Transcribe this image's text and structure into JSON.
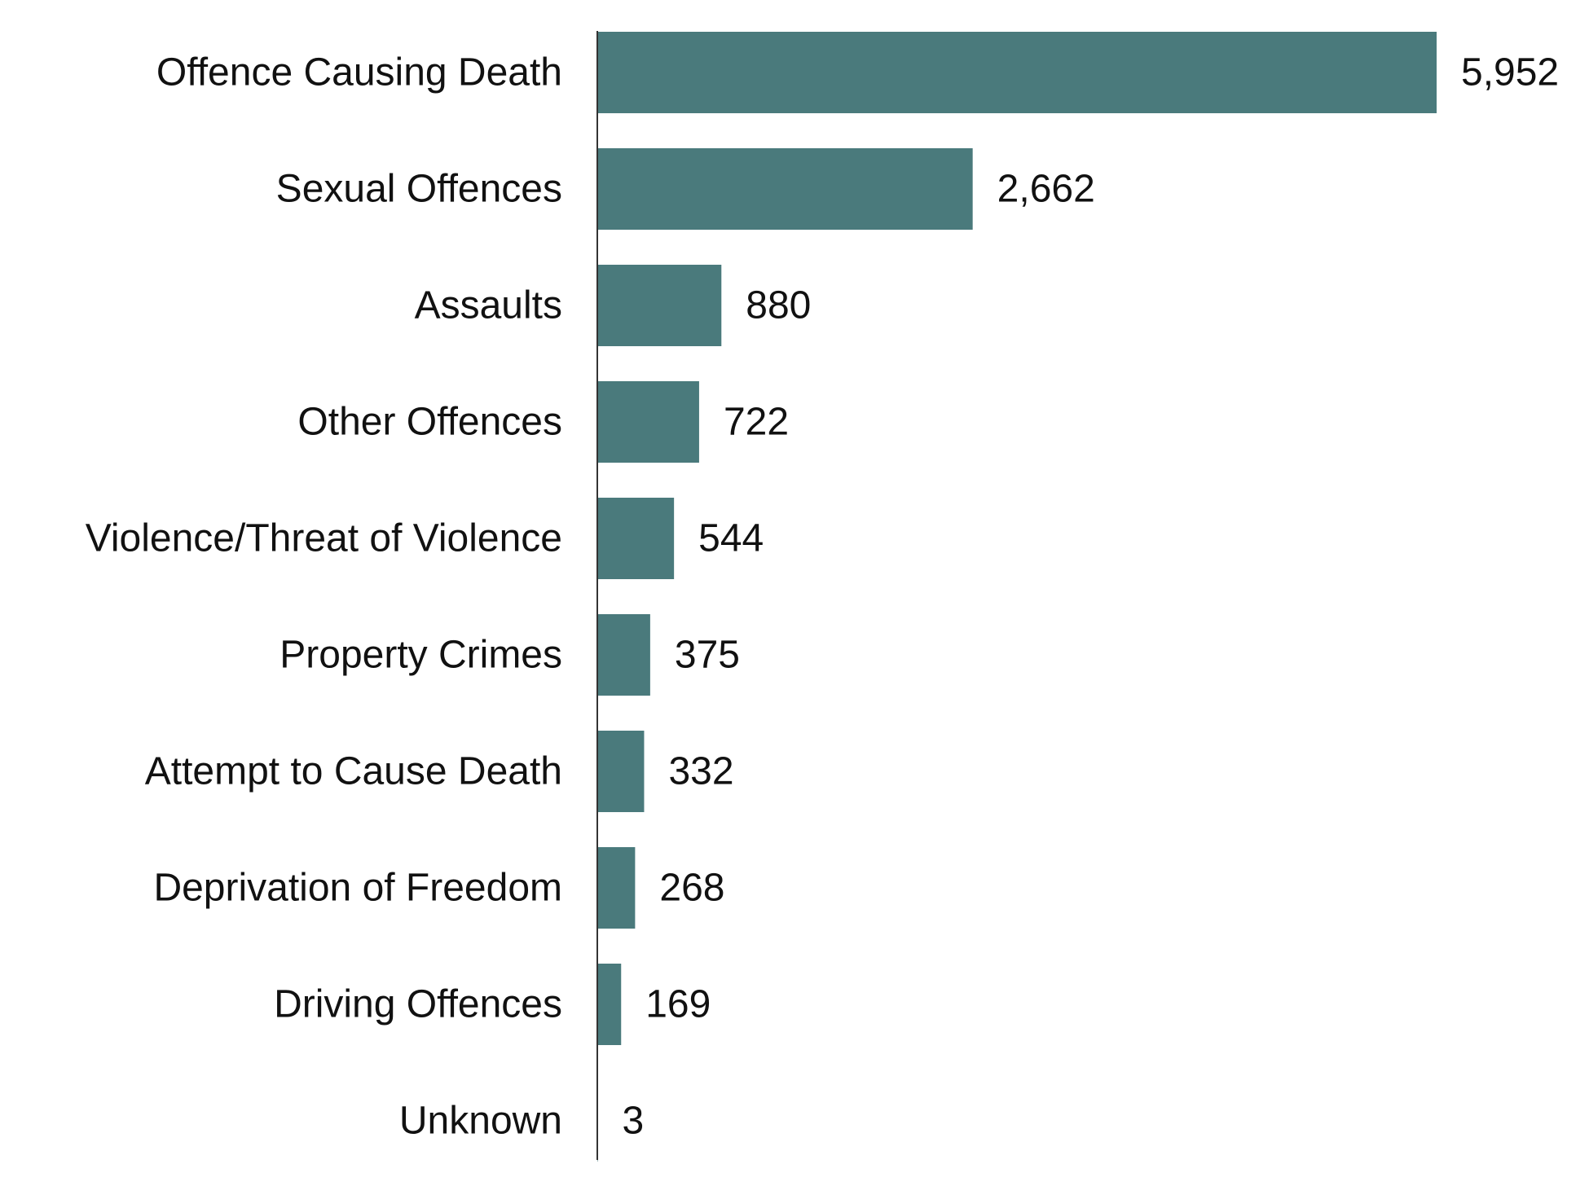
{
  "chart_data": {
    "type": "bar",
    "orientation": "horizontal",
    "title": "",
    "xlabel": "",
    "ylabel": "",
    "categories": [
      "Offence Causing Death",
      "Sexual Offences",
      "Assaults",
      "Other Offences",
      "Violence/Threat of Violence",
      "Property Crimes",
      "Attempt to Cause Death",
      "Deprivation of Freedom",
      "Driving Offences",
      "Unknown"
    ],
    "values": [
      5952,
      2662,
      880,
      722,
      544,
      375,
      332,
      268,
      169,
      3
    ],
    "value_labels": [
      "5,952",
      "2,662",
      "880",
      "722",
      "544",
      "375",
      "332",
      "268",
      "169",
      "3"
    ],
    "xlim": [
      0,
      5952
    ],
    "grid": false,
    "legend": "none",
    "bar_color": "#4a7a7c",
    "axis_color": "#333333"
  }
}
